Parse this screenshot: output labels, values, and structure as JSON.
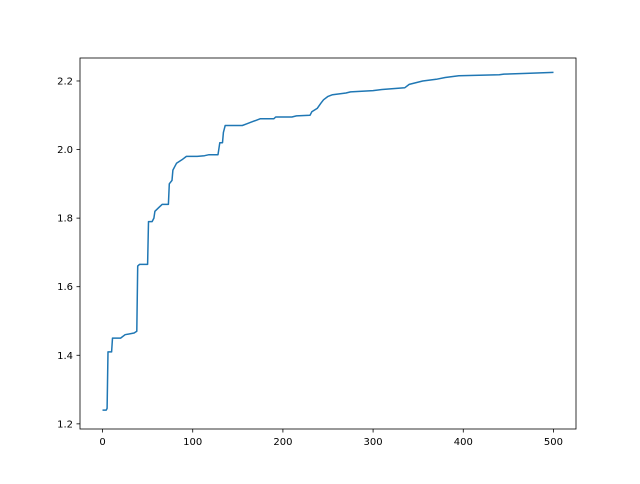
{
  "chart_data": {
    "type": "line",
    "title": "",
    "xlabel": "",
    "ylabel": "",
    "xlim": [
      -25,
      525
    ],
    "ylim": [
      1.185,
      2.267
    ],
    "xticks": [
      0,
      100,
      200,
      300,
      400,
      500
    ],
    "xtick_labels": [
      "0",
      "100",
      "200",
      "300",
      "400",
      "500"
    ],
    "yticks": [
      1.2,
      1.4,
      1.6,
      1.8,
      2.0,
      2.2
    ],
    "ytick_labels": [
      "1.2",
      "1.4",
      "1.6",
      "1.8",
      "2.0",
      "2.2"
    ],
    "grid": false,
    "series": [
      {
        "color": "#1f77b4",
        "x": [
          0,
          4,
          5,
          6,
          10,
          11,
          20,
          25,
          35,
          38,
          39,
          41,
          50,
          51,
          55,
          57,
          58,
          62,
          66,
          73,
          74,
          77,
          78,
          80,
          82,
          88,
          93,
          105,
          113,
          118,
          128,
          130,
          133,
          134,
          136,
          155,
          160,
          165,
          170,
          175,
          190,
          192,
          210,
          215,
          230,
          232,
          238,
          242,
          245,
          250,
          255,
          270,
          275,
          300,
          310,
          335,
          340,
          355,
          370,
          380,
          395,
          440,
          445,
          470,
          500
        ],
        "y": [
          1.24,
          1.24,
          1.245,
          1.41,
          1.41,
          1.45,
          1.45,
          1.46,
          1.465,
          1.47,
          1.66,
          1.665,
          1.665,
          1.79,
          1.79,
          1.8,
          1.82,
          1.83,
          1.84,
          1.84,
          1.9,
          1.91,
          1.94,
          1.95,
          1.96,
          1.97,
          1.98,
          1.98,
          1.982,
          1.985,
          1.985,
          2.02,
          2.02,
          2.05,
          2.07,
          2.07,
          2.075,
          2.08,
          2.085,
          2.09,
          2.09,
          2.095,
          2.095,
          2.098,
          2.1,
          2.11,
          2.12,
          2.135,
          2.145,
          2.155,
          2.16,
          2.165,
          2.168,
          2.172,
          2.175,
          2.18,
          2.19,
          2.2,
          2.205,
          2.21,
          2.215,
          2.218,
          2.22,
          2.222,
          2.225
        ]
      }
    ]
  }
}
